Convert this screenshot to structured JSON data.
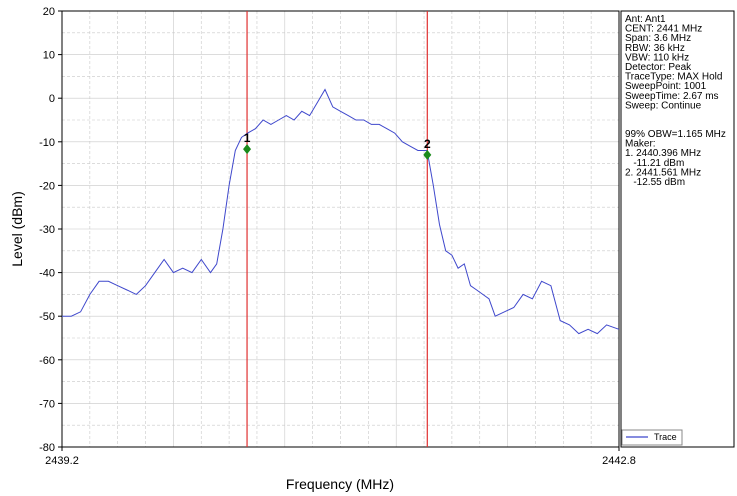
{
  "chart_data": {
    "type": "line",
    "xlabel": "Frequency (MHz)",
    "ylabel": "Level (dBm)",
    "xlim": [
      2439.2,
      2442.8
    ],
    "ylim": [
      -80,
      20
    ],
    "x_tick_labels": [
      "2439.2",
      "2442.8"
    ],
    "y_ticks": [
      20,
      10,
      0,
      -10,
      -20,
      -30,
      -40,
      -50,
      -60,
      -70,
      -80
    ],
    "grid": true,
    "legend_position": "bottom-right",
    "series": [
      {
        "name": "Trace",
        "color": "#3f48cc",
        "x": [
          2439.2,
          2439.26,
          2439.32,
          2439.38,
          2439.44,
          2439.5,
          2439.56,
          2439.62,
          2439.68,
          2439.74,
          2439.8,
          2439.86,
          2439.92,
          2439.98,
          2440.04,
          2440.1,
          2440.16,
          2440.2,
          2440.24,
          2440.28,
          2440.32,
          2440.36,
          2440.4,
          2440.45,
          2440.5,
          2440.55,
          2440.6,
          2440.65,
          2440.7,
          2440.75,
          2440.8,
          2440.85,
          2440.9,
          2440.95,
          2441.0,
          2441.05,
          2441.1,
          2441.15,
          2441.2,
          2441.25,
          2441.3,
          2441.35,
          2441.4,
          2441.45,
          2441.5,
          2441.56,
          2441.6,
          2441.64,
          2441.68,
          2441.72,
          2441.76,
          2441.8,
          2441.84,
          2441.88,
          2441.92,
          2441.96,
          2442.0,
          2442.06,
          2442.12,
          2442.18,
          2442.24,
          2442.3,
          2442.36,
          2442.42,
          2442.48,
          2442.54,
          2442.6,
          2442.66,
          2442.72,
          2442.8
        ],
        "values": [
          -50,
          -50,
          -49,
          -45,
          -42,
          -42,
          -43,
          -44,
          -45,
          -43,
          -40,
          -37,
          -40,
          -39,
          -40,
          -37,
          -40,
          -38,
          -30,
          -20,
          -12,
          -9,
          -8,
          -7,
          -5,
          -6,
          -5,
          -4,
          -5,
          -3,
          -4,
          -1,
          2,
          -2,
          -3,
          -4,
          -5,
          -5,
          -6,
          -6,
          -7,
          -8,
          -10,
          -11,
          -12,
          -12,
          -20,
          -29,
          -35,
          -36,
          -39,
          -38,
          -43,
          -44,
          -45,
          -46,
          -50,
          -49,
          -48,
          -45,
          -46,
          -42,
          -43,
          -51,
          -52,
          -54,
          -53,
          -54,
          -52,
          -53
        ]
      }
    ],
    "markers": [
      {
        "label": "1",
        "x": 2440.396,
        "y": -11.21
      },
      {
        "label": "2",
        "x": 2441.561,
        "y": -12.55
      }
    ]
  },
  "info_panel": {
    "lines": [
      "Ant: Ant1",
      "CENT: 2441 MHz",
      "Span: 3.6 MHz",
      "RBW: 36 kHz",
      "VBW: 110 kHz",
      "Detector: Peak",
      "TraceType: MAX Hold",
      "SweepPoint: 1001",
      "SweepTime: 2.67 ms",
      "Sweep: Continue"
    ],
    "obw_lines": [
      "99% OBW=1.165 MHz",
      "Maker:",
      "1. 2440.396 MHz",
      "   -11.21 dBm",
      "2. 2441.561 MHz",
      "   -12.55 dBm"
    ]
  },
  "legend": {
    "label": "Trace",
    "color": "#3f48cc"
  },
  "colors": {
    "marker_line": "#e03030",
    "marker_dot": "#1a8a1a",
    "grid": "#c8c8c8"
  }
}
